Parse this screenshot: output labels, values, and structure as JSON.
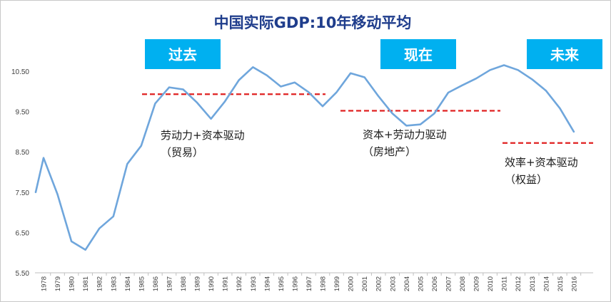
{
  "chart_data": {
    "type": "line",
    "title": "中国实际GDP:10年移动平均",
    "xlabel": "",
    "ylabel": "",
    "ylim": [
      5.5,
      10.8
    ],
    "yticks": [
      "5.50",
      "6.50",
      "7.50",
      "8.50",
      "9.50",
      "10.50"
    ],
    "grid": false,
    "legend": "none",
    "x": [
      "1978",
      "1979",
      "1980",
      "1981",
      "1982",
      "1983",
      "1984",
      "1985",
      "1986",
      "1987",
      "1988",
      "1989",
      "1990",
      "1991",
      "1992",
      "1993",
      "1994",
      "1995",
      "1996",
      "1997",
      "1998",
      "1999",
      "2000",
      "2001",
      "2002",
      "2003",
      "2004",
      "2005",
      "2006",
      "2007",
      "2008",
      "2009",
      "2010",
      "2011",
      "2012",
      "2013",
      "2014",
      "2015",
      "2016"
    ],
    "series": [
      {
        "name": "",
        "color": "#6fa6dc",
        "values": [
          8.35,
          7.45,
          6.28,
          6.07,
          6.6,
          6.9,
          8.2,
          8.65,
          9.7,
          10.1,
          10.05,
          9.72,
          9.32,
          9.75,
          10.28,
          10.6,
          10.4,
          10.12,
          10.22,
          9.98,
          9.63,
          9.98,
          10.45,
          10.35,
          9.88,
          9.45,
          9.15,
          9.18,
          9.45,
          9.97,
          10.15,
          10.32,
          10.53,
          10.65,
          10.53,
          10.3,
          10.02,
          9.58,
          9.0
        ],
        "start_value": 7.5
      }
    ],
    "periods": [
      {
        "label": "过去",
        "level": 9.93,
        "start": "1985",
        "end": "1998"
      },
      {
        "label": "现在",
        "level": 9.52,
        "start": "1999",
        "end": "2009"
      },
      {
        "label": "未来",
        "level": 8.72,
        "start": "2010",
        "end": "2016"
      }
    ],
    "annotations": [
      {
        "lines": [
          "劳动力+资本驱动",
          "（贸易）"
        ]
      },
      {
        "lines": [
          "资本+劳动力驱动",
          "（房地产）"
        ]
      },
      {
        "lines": [
          "效率+资本驱动",
          "（权益）"
        ]
      }
    ],
    "colors": {
      "line": "#6fa6dc",
      "dashed": "#e02020",
      "label_box": "#00b0f0",
      "title": "#1f3d8c",
      "axis": "#bfbfbf"
    }
  }
}
